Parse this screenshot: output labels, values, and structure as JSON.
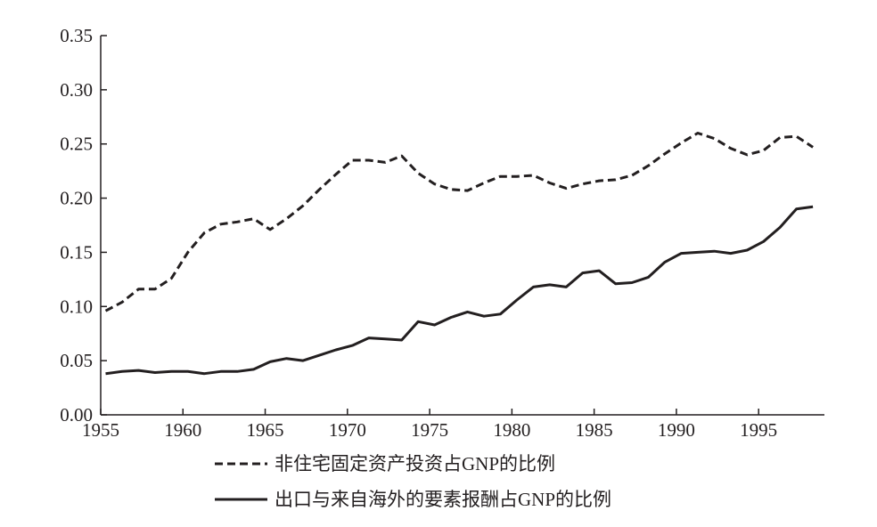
{
  "chart_data": {
    "type": "line",
    "title": "",
    "xlabel": "",
    "ylabel": "",
    "xlim": [
      1955,
      1999
    ],
    "ylim": [
      0,
      0.35
    ],
    "x_ticks": [
      "1955",
      "1960",
      "1965",
      "1970",
      "1975",
      "1980",
      "1985",
      "1990",
      "1995"
    ],
    "y_ticks": [
      "0.00",
      "0.05",
      "0.10",
      "0.15",
      "0.20",
      "0.25",
      "0.30",
      "0.35"
    ],
    "grid": false,
    "legend_position": "bottom",
    "series": [
      {
        "name": "非住宅固定资产投资占GNP的比例",
        "style": "dashed",
        "color": "#231f20",
        "x": [
          1955.3,
          1956.3,
          1957.3,
          1958.3,
          1959.3,
          1960.3,
          1961.3,
          1962.3,
          1963.3,
          1964.3,
          1965.3,
          1966.3,
          1967.3,
          1968.3,
          1969.3,
          1970.3,
          1971.3,
          1972.3,
          1973.3,
          1974.3,
          1975.3,
          1976.3,
          1977.3,
          1978.3,
          1979.3,
          1980.3,
          1981.3,
          1982.3,
          1983.3,
          1984.3,
          1985.3,
          1986.3,
          1987.3,
          1988.3,
          1989.3,
          1990.3,
          1991.3,
          1992.3,
          1993.3,
          1994.3,
          1995.3,
          1996.3,
          1997.3,
          1998.3
        ],
        "values": [
          0.096,
          0.104,
          0.116,
          0.116,
          0.126,
          0.15,
          0.168,
          0.176,
          0.178,
          0.181,
          0.171,
          0.181,
          0.193,
          0.208,
          0.222,
          0.235,
          0.235,
          0.233,
          0.239,
          0.223,
          0.213,
          0.208,
          0.207,
          0.214,
          0.22,
          0.22,
          0.221,
          0.214,
          0.209,
          0.213,
          0.216,
          0.217,
          0.221,
          0.23,
          0.241,
          0.251,
          0.26,
          0.255,
          0.246,
          0.24,
          0.244,
          0.256,
          0.257,
          0.247
        ]
      },
      {
        "name": "出口与来自海外的要素报酬占GNP的比例",
        "style": "solid",
        "color": "#231f20",
        "x": [
          1955.3,
          1956.3,
          1957.3,
          1958.3,
          1959.3,
          1960.3,
          1961.3,
          1962.3,
          1963.3,
          1964.3,
          1965.3,
          1966.3,
          1967.3,
          1968.3,
          1969.3,
          1970.3,
          1971.3,
          1972.3,
          1973.3,
          1974.3,
          1975.3,
          1976.3,
          1977.3,
          1978.3,
          1979.3,
          1980.3,
          1981.3,
          1982.3,
          1983.3,
          1984.3,
          1985.3,
          1986.3,
          1987.3,
          1988.3,
          1989.3,
          1990.3,
          1991.3,
          1992.3,
          1993.3,
          1994.3,
          1995.3,
          1996.3,
          1997.3,
          1998.3
        ],
        "values": [
          0.038,
          0.04,
          0.041,
          0.039,
          0.04,
          0.04,
          0.038,
          0.04,
          0.04,
          0.042,
          0.049,
          0.052,
          0.05,
          0.055,
          0.06,
          0.064,
          0.071,
          0.07,
          0.069,
          0.086,
          0.083,
          0.09,
          0.095,
          0.091,
          0.093,
          0.106,
          0.118,
          0.12,
          0.118,
          0.131,
          0.133,
          0.121,
          0.122,
          0.127,
          0.141,
          0.149,
          0.15,
          0.151,
          0.149,
          0.152,
          0.16,
          0.173,
          0.19,
          0.192
        ]
      }
    ]
  }
}
